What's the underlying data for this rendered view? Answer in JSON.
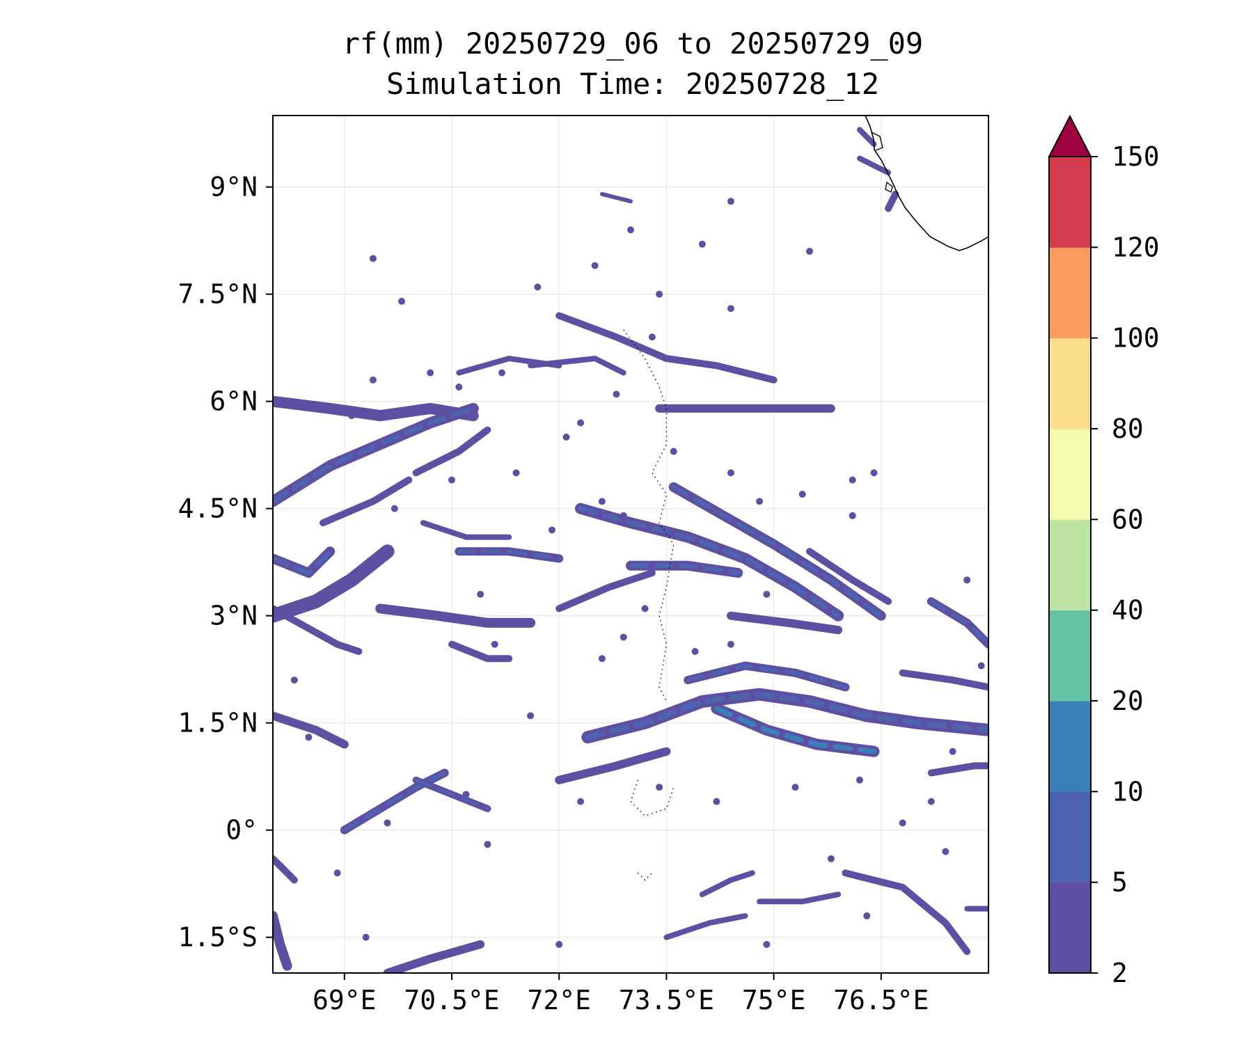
{
  "chart_data": {
    "type": "heatmap",
    "title": "rf(mm) 20250729_06 to 20250729_09",
    "subtitle": "Simulation Time: 20250728_12",
    "xlabel": "",
    "ylabel": "",
    "x_range_deg_e": [
      68.0,
      78.0
    ],
    "y_range_deg_n": [
      -2.0,
      10.0
    ],
    "x_ticks": [
      {
        "value": 69.0,
        "label": "69°E"
      },
      {
        "value": 70.5,
        "label": "70.5°E"
      },
      {
        "value": 72.0,
        "label": "72°E"
      },
      {
        "value": 73.5,
        "label": "73.5°E"
      },
      {
        "value": 75.0,
        "label": "75°E"
      },
      {
        "value": 76.5,
        "label": "76.5°E"
      }
    ],
    "y_ticks": [
      {
        "value": 9.0,
        "label": "9°N"
      },
      {
        "value": 7.5,
        "label": "7.5°N"
      },
      {
        "value": 6.0,
        "label": "6°N"
      },
      {
        "value": 4.5,
        "label": "4.5°N"
      },
      {
        "value": 3.0,
        "label": "3°N"
      },
      {
        "value": 1.5,
        "label": "1.5°N"
      },
      {
        "value": 0.0,
        "label": "0°"
      },
      {
        "value": -1.5,
        "label": "1.5°S"
      }
    ],
    "grid": true,
    "colorbar": {
      "levels": [
        2,
        5,
        10,
        20,
        40,
        60,
        80,
        100,
        120,
        150
      ],
      "labels": [
        "2",
        "5",
        "10",
        "20",
        "40",
        "60",
        "80",
        "100",
        "120",
        "150"
      ],
      "colors": [
        "#5e4fa2",
        "#4d63ae",
        "#3a7fb8",
        "#66c2a5",
        "#bde4a0",
        "#f4faae",
        "#fcdd8c",
        "#f99c5c",
        "#d43d4f",
        "#9e0142"
      ],
      "extend": "max"
    },
    "rain_bands": [
      {
        "path": [
          [
            68.0,
            6.0
          ],
          [
            68.8,
            5.9
          ],
          [
            69.5,
            5.8
          ],
          [
            70.2,
            5.9
          ],
          [
            70.8,
            5.8
          ]
        ],
        "level": 5,
        "weight": 16
      },
      {
        "path": [
          [
            68.0,
            4.6
          ],
          [
            68.8,
            5.1
          ],
          [
            69.5,
            5.4
          ],
          [
            70.2,
            5.7
          ],
          [
            70.8,
            5.9
          ]
        ],
        "level": 10,
        "weight": 16
      },
      {
        "path": [
          [
            68.0,
            3.0
          ],
          [
            68.6,
            3.2
          ],
          [
            69.1,
            3.5
          ],
          [
            69.6,
            3.9
          ]
        ],
        "level": 5,
        "weight": 20
      },
      {
        "path": [
          [
            68.0,
            3.8
          ],
          [
            68.5,
            3.6
          ],
          [
            68.8,
            3.9
          ]
        ],
        "level": 10,
        "weight": 14
      },
      {
        "path": [
          [
            68.0,
            3.1
          ],
          [
            68.9,
            2.6
          ],
          [
            69.2,
            2.5
          ]
        ],
        "level": 5,
        "weight": 10
      },
      {
        "path": [
          [
            69.5,
            3.1
          ],
          [
            70.3,
            3.0
          ],
          [
            71.0,
            2.9
          ],
          [
            71.6,
            2.9
          ]
        ],
        "level": 5,
        "weight": 14
      },
      {
        "path": [
          [
            70.5,
            2.6
          ],
          [
            71.0,
            2.4
          ],
          [
            71.3,
            2.4
          ]
        ],
        "level": 5,
        "weight": 10
      },
      {
        "path": [
          [
            68.7,
            4.3
          ],
          [
            69.4,
            4.6
          ],
          [
            69.9,
            4.9
          ]
        ],
        "level": 5,
        "weight": 10
      },
      {
        "path": [
          [
            70.0,
            5.0
          ],
          [
            70.6,
            5.3
          ],
          [
            71.0,
            5.6
          ]
        ],
        "level": 5,
        "weight": 10
      },
      {
        "path": [
          [
            70.6,
            3.9
          ],
          [
            71.3,
            3.9
          ],
          [
            72.0,
            3.8
          ]
        ],
        "level": 10,
        "weight": 12
      },
      {
        "path": [
          [
            70.1,
            4.3
          ],
          [
            70.7,
            4.1
          ],
          [
            71.3,
            4.1
          ]
        ],
        "level": 5,
        "weight": 8
      },
      {
        "path": [
          [
            70.6,
            6.4
          ],
          [
            71.3,
            6.6
          ],
          [
            72.0,
            6.5
          ]
        ],
        "level": 5,
        "weight": 8
      },
      {
        "path": [
          [
            72.0,
            7.2
          ],
          [
            72.8,
            6.9
          ],
          [
            73.5,
            6.6
          ],
          [
            74.2,
            6.5
          ],
          [
            75.0,
            6.3
          ]
        ],
        "level": 5,
        "weight": 10
      },
      {
        "path": [
          [
            71.6,
            6.5
          ],
          [
            72.5,
            6.6
          ],
          [
            72.9,
            6.4
          ]
        ],
        "level": 5,
        "weight": 8
      },
      {
        "path": [
          [
            73.4,
            5.9
          ],
          [
            74.2,
            5.9
          ],
          [
            75.1,
            5.9
          ],
          [
            75.8,
            5.9
          ]
        ],
        "level": 5,
        "weight": 12
      },
      {
        "path": [
          [
            72.3,
            4.5
          ],
          [
            73.0,
            4.3
          ],
          [
            73.8,
            4.1
          ],
          [
            74.6,
            3.8
          ],
          [
            75.3,
            3.4
          ],
          [
            75.9,
            3.0
          ]
        ],
        "level": 10,
        "weight": 16
      },
      {
        "path": [
          [
            73.6,
            4.8
          ],
          [
            74.3,
            4.4
          ],
          [
            75.0,
            4.0
          ],
          [
            75.8,
            3.5
          ],
          [
            76.5,
            3.0
          ]
        ],
        "level": 10,
        "weight": 14
      },
      {
        "path": [
          [
            73.0,
            3.7
          ],
          [
            73.8,
            3.7
          ],
          [
            74.5,
            3.6
          ]
        ],
        "level": 10,
        "weight": 14
      },
      {
        "path": [
          [
            72.0,
            3.1
          ],
          [
            72.7,
            3.4
          ],
          [
            73.3,
            3.6
          ]
        ],
        "level": 5,
        "weight": 10
      },
      {
        "path": [
          [
            74.4,
            3.0
          ],
          [
            75.2,
            2.9
          ],
          [
            75.9,
            2.8
          ]
        ],
        "level": 5,
        "weight": 12
      },
      {
        "path": [
          [
            75.5,
            3.9
          ],
          [
            76.1,
            3.5
          ],
          [
            76.6,
            3.2
          ]
        ],
        "level": 5,
        "weight": 10
      },
      {
        "path": [
          [
            72.4,
            1.3
          ],
          [
            73.2,
            1.5
          ],
          [
            74.0,
            1.8
          ],
          [
            74.8,
            1.9
          ],
          [
            75.5,
            1.8
          ],
          [
            76.3,
            1.6
          ],
          [
            77.0,
            1.5
          ],
          [
            78.0,
            1.4
          ]
        ],
        "level": 10,
        "weight": 18
      },
      {
        "path": [
          [
            74.2,
            1.7
          ],
          [
            74.9,
            1.4
          ],
          [
            75.6,
            1.2
          ],
          [
            76.4,
            1.1
          ]
        ],
        "level": 20,
        "weight": 16
      },
      {
        "path": [
          [
            73.8,
            2.1
          ],
          [
            74.6,
            2.3
          ],
          [
            75.3,
            2.2
          ],
          [
            76.0,
            2.0
          ]
        ],
        "level": 10,
        "weight": 12
      },
      {
        "path": [
          [
            72.0,
            0.7
          ],
          [
            72.8,
            0.9
          ],
          [
            73.5,
            1.1
          ]
        ],
        "level": 5,
        "weight": 12
      },
      {
        "path": [
          [
            77.2,
            3.2
          ],
          [
            77.7,
            2.9
          ],
          [
            78.0,
            2.6
          ]
        ],
        "level": 10,
        "weight": 12
      },
      {
        "path": [
          [
            76.8,
            2.2
          ],
          [
            77.5,
            2.1
          ],
          [
            78.0,
            2.0
          ]
        ],
        "level": 5,
        "weight": 10
      },
      {
        "path": [
          [
            77.2,
            0.8
          ],
          [
            77.8,
            0.9
          ],
          [
            78.0,
            0.9
          ]
        ],
        "level": 5,
        "weight": 10
      },
      {
        "path": [
          [
            69.0,
            0.0
          ],
          [
            69.5,
            0.3
          ],
          [
            70.0,
            0.6
          ],
          [
            70.4,
            0.8
          ]
        ],
        "level": 10,
        "weight": 12
      },
      {
        "path": [
          [
            70.0,
            0.7
          ],
          [
            70.5,
            0.5
          ],
          [
            71.0,
            0.3
          ]
        ],
        "level": 10,
        "weight": 10
      },
      {
        "path": [
          [
            68.0,
            1.6
          ],
          [
            68.6,
            1.4
          ],
          [
            69.0,
            1.2
          ]
        ],
        "level": 5,
        "weight": 12
      },
      {
        "path": [
          [
            68.0,
            -0.4
          ],
          [
            68.3,
            -0.7
          ]
        ],
        "level": 5,
        "weight": 10
      },
      {
        "path": [
          [
            68.0,
            -1.2
          ],
          [
            68.1,
            -1.6
          ],
          [
            68.2,
            -1.9
          ]
        ],
        "level": 5,
        "weight": 14
      },
      {
        "path": [
          [
            69.6,
            -2.0
          ],
          [
            70.2,
            -1.8
          ],
          [
            70.9,
            -1.6
          ]
        ],
        "level": 5,
        "weight": 12
      },
      {
        "path": [
          [
            73.5,
            -1.5
          ],
          [
            74.1,
            -1.3
          ],
          [
            74.6,
            -1.2
          ]
        ],
        "level": 5,
        "weight": 8
      },
      {
        "path": [
          [
            74.0,
            -0.9
          ],
          [
            74.4,
            -0.7
          ],
          [
            74.7,
            -0.6
          ]
        ],
        "level": 5,
        "weight": 8
      },
      {
        "path": [
          [
            76.0,
            -0.6
          ],
          [
            76.8,
            -0.8
          ],
          [
            77.4,
            -1.3
          ],
          [
            77.7,
            -1.7
          ]
        ],
        "level": 5,
        "weight": 10
      },
      {
        "path": [
          [
            74.8,
            -1.0
          ],
          [
            75.4,
            -1.0
          ],
          [
            75.9,
            -0.9
          ]
        ],
        "level": 5,
        "weight": 8
      },
      {
        "path": [
          [
            77.7,
            -1.1
          ],
          [
            78.0,
            -1.1
          ]
        ],
        "level": 5,
        "weight": 8
      },
      {
        "path": [
          [
            72.6,
            8.9
          ],
          [
            73.0,
            8.8
          ]
        ],
        "level": 5,
        "weight": 6
      },
      {
        "path": [
          [
            76.2,
            9.4
          ],
          [
            76.6,
            9.2
          ]
        ],
        "level": 5,
        "weight": 8
      },
      {
        "path": [
          [
            76.6,
            8.7
          ],
          [
            76.7,
            8.9
          ]
        ],
        "level": 5,
        "weight": 10
      },
      {
        "path": [
          [
            76.2,
            9.8
          ],
          [
            76.4,
            9.6
          ]
        ],
        "level": 5,
        "weight": 8
      }
    ],
    "rain_spots": [
      [
        69.8,
        7.4
      ],
      [
        70.6,
        6.2
      ],
      [
        71.2,
        6.4
      ],
      [
        69.1,
        5.8
      ],
      [
        70.5,
        4.9
      ],
      [
        71.4,
        5.0
      ],
      [
        69.7,
        4.5
      ],
      [
        71.9,
        4.2
      ],
      [
        72.6,
        4.6
      ],
      [
        72.9,
        4.4
      ],
      [
        73.2,
        3.1
      ],
      [
        71.1,
        2.6
      ],
      [
        70.9,
        3.3
      ],
      [
        72.3,
        5.7
      ],
      [
        72.8,
        6.1
      ],
      [
        72.1,
        5.5
      ],
      [
        73.6,
        5.3
      ],
      [
        74.4,
        5.0
      ],
      [
        74.8,
        4.6
      ],
      [
        75.4,
        4.7
      ],
      [
        76.1,
        4.4
      ],
      [
        74.9,
        3.3
      ],
      [
        73.9,
        2.5
      ],
      [
        74.4,
        2.6
      ],
      [
        72.9,
        2.7
      ],
      [
        72.6,
        2.4
      ],
      [
        71.6,
        1.6
      ],
      [
        72.3,
        0.4
      ],
      [
        73.4,
        0.6
      ],
      [
        74.2,
        0.4
      ],
      [
        75.3,
        0.6
      ],
      [
        76.2,
        0.7
      ],
      [
        76.8,
        0.1
      ],
      [
        77.2,
        0.4
      ],
      [
        74.0,
        8.2
      ],
      [
        73.0,
        8.4
      ],
      [
        72.5,
        7.9
      ],
      [
        74.4,
        8.8
      ],
      [
        75.5,
        8.1
      ],
      [
        69.4,
        8.0
      ],
      [
        74.4,
        7.3
      ],
      [
        73.4,
        7.5
      ],
      [
        71.7,
        7.6
      ],
      [
        70.2,
        6.4
      ],
      [
        69.4,
        6.3
      ],
      [
        76.4,
        5.0
      ],
      [
        76.1,
        4.9
      ],
      [
        77.7,
        3.5
      ],
      [
        77.9,
        2.3
      ],
      [
        70.7,
        0.5
      ],
      [
        69.6,
        0.1
      ],
      [
        68.9,
        -0.6
      ],
      [
        69.3,
        -1.5
      ],
      [
        72.0,
        -1.6
      ],
      [
        74.9,
        -1.6
      ],
      [
        75.8,
        -0.4
      ],
      [
        77.4,
        -0.3
      ],
      [
        71.0,
        -0.2
      ],
      [
        68.5,
        1.3
      ],
      [
        68.3,
        2.1
      ],
      [
        73.3,
        6.9
      ],
      [
        76.3,
        -1.2
      ],
      [
        77.5,
        1.1
      ]
    ],
    "coastline_color": "#000000",
    "islands_style": "dotted"
  }
}
